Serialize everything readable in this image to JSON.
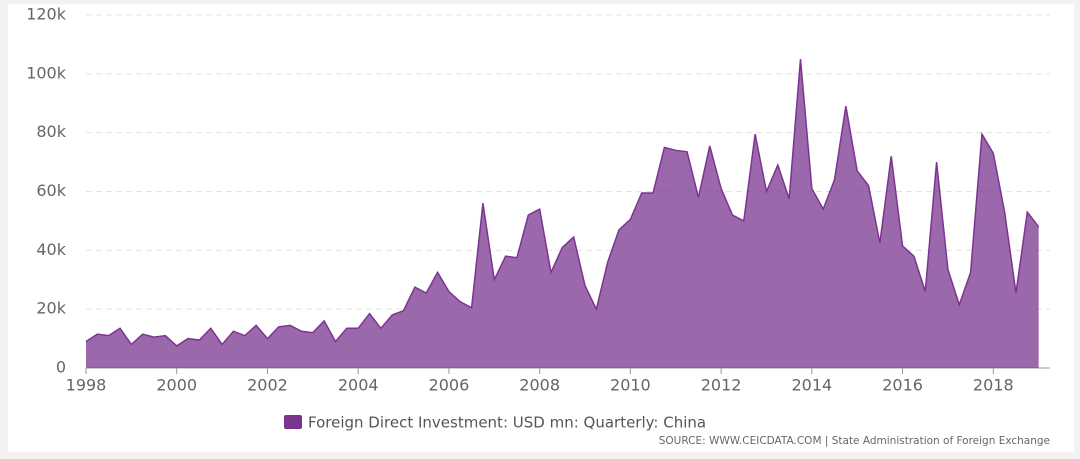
{
  "chart_data": {
    "type": "area",
    "x": [
      1998,
      1998.25,
      1998.5,
      1998.75,
      1999,
      1999.25,
      1999.5,
      1999.75,
      2000,
      2000.25,
      2000.5,
      2000.75,
      2001,
      2001.25,
      2001.5,
      2001.75,
      2002,
      2002.25,
      2002.5,
      2002.75,
      2003,
      2003.25,
      2003.5,
      2003.75,
      2004,
      2004.25,
      2004.5,
      2004.75,
      2005,
      2005.25,
      2005.5,
      2005.75,
      2006,
      2006.25,
      2006.5,
      2006.75,
      2007,
      2007.25,
      2007.5,
      2007.75,
      2008,
      2008.25,
      2008.5,
      2008.75,
      2009,
      2009.25,
      2009.5,
      2009.75,
      2010,
      2010.25,
      2010.5,
      2010.75,
      2011,
      2011.25,
      2011.5,
      2011.75,
      2012,
      2012.25,
      2012.5,
      2012.75,
      2013,
      2013.25,
      2013.5,
      2013.75,
      2014,
      2014.25,
      2014.5,
      2014.75,
      2015,
      2015.25,
      2015.5,
      2015.75,
      2016,
      2016.25,
      2016.5,
      2016.75,
      2017,
      2017.25,
      2017.5,
      2017.75,
      2018,
      2018.25,
      2018.5,
      2018.75,
      2019
    ],
    "series": [
      {
        "name": "Foreign Direct Investment: USD mn: Quarterly: China",
        "color": "#7b3590",
        "values": [
          9000,
          11500,
          11000,
          13500,
          8000,
          11500,
          10500,
          11000,
          7500,
          10000,
          9500,
          13500,
          8000,
          12500,
          11000,
          14500,
          10000,
          14000,
          14500,
          12500,
          12000,
          16000,
          9000,
          13500,
          13500,
          18500,
          13500,
          18000,
          19500,
          27500,
          25500,
          32500,
          26000,
          22500,
          20500,
          56000,
          30000,
          38000,
          37500,
          52000,
          54000,
          32500,
          41000,
          44500,
          28000,
          20000,
          36000,
          47000,
          50500,
          59500,
          59500,
          75000,
          74000,
          73500,
          58000,
          75500,
          61000,
          52000,
          50000,
          79500,
          60000,
          69000,
          57500,
          105000,
          61000,
          54000,
          64000,
          89000,
          67000,
          62000,
          42500,
          72000,
          41500,
          38000,
          26000,
          70000,
          33500,
          21500,
          32500,
          79500,
          73000,
          53000,
          25500,
          53000,
          48000
        ]
      }
    ],
    "xlim": [
      1998,
      2019.25
    ],
    "xticks": [
      1998,
      2000,
      2002,
      2004,
      2006,
      2008,
      2010,
      2012,
      2014,
      2016,
      2018
    ],
    "ylim": [
      0,
      120000
    ],
    "yticks": [
      0,
      {
        "value": 20000,
        "label": "20k"
      },
      {
        "value": 40000,
        "label": "40k"
      },
      {
        "value": 60000,
        "label": "60k"
      },
      {
        "value": 80000,
        "label": "80k"
      },
      {
        "value": 100000,
        "label": "100k"
      },
      {
        "value": 120000,
        "label": "120k"
      }
    ],
    "grid": true,
    "source": "SOURCE: WWW.CEICDATA.COM | State Administration of Foreign Exchange"
  }
}
